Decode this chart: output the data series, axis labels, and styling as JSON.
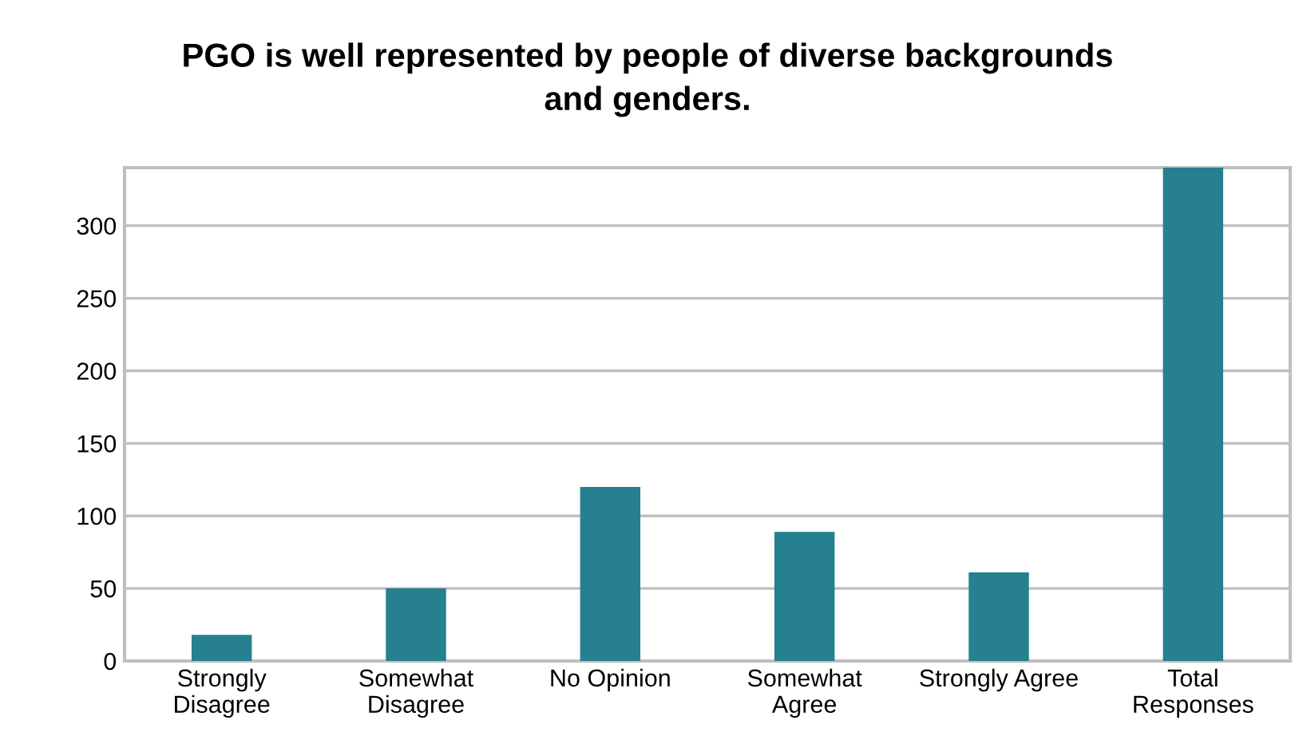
{
  "chart_data": {
    "type": "bar",
    "title": "PGO is well represented by people of diverse backgrounds\nand genders.",
    "categories": [
      "Strongly\nDisagree",
      "Somewhat\nDisagree",
      "No Opinion",
      "Somewhat\nAgree",
      "Strongly Agree",
      "Total\nResponses"
    ],
    "values": [
      18,
      50,
      120,
      89,
      61,
      340
    ],
    "color": "#26808f",
    "ylim": [
      0,
      340
    ],
    "yticks": [
      0,
      50,
      100,
      150,
      200,
      250,
      300
    ],
    "grid": "y",
    "legend": false
  }
}
